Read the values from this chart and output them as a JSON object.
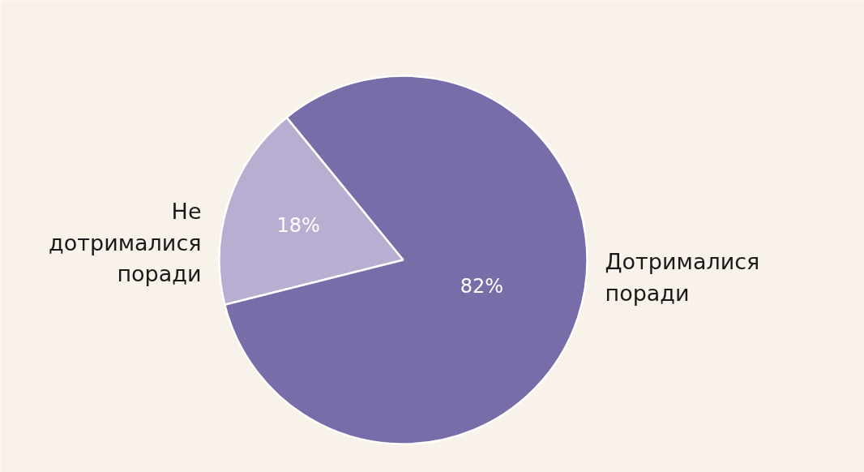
{
  "chart_data": {
    "type": "pie",
    "categories": [
      "Не дотрималися поради",
      "Дотрималися поради"
    ],
    "values": [
      18,
      82
    ],
    "colors": [
      "#b8aed2",
      "#786ca9"
    ],
    "value_labels": [
      "18%",
      "82%"
    ]
  }
}
